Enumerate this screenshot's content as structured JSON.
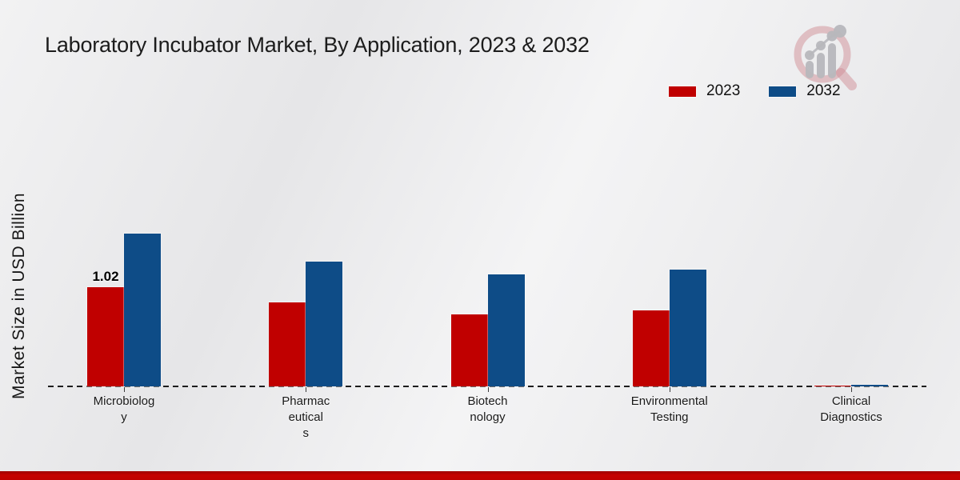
{
  "branding": {
    "logo_icon": "magnifier-growth-chart-logo"
  },
  "footer": {
    "strip_color": "#c00200"
  },
  "chart_data": {
    "type": "bar",
    "title": "Laboratory Incubator Market, By Application, 2023 & 2032",
    "xlabel": "",
    "ylabel": "Market Size in USD Billion",
    "unit": "USD Billion",
    "categories": [
      "Microbiology",
      "Pharmaceuticals",
      "Biotechnology",
      "Environmental Testing",
      "Clinical Diagnostics"
    ],
    "category_lines": [
      [
        "Microbiolog",
        "y"
      ],
      [
        "Pharmac",
        "eutical",
        "s"
      ],
      [
        "Biotech",
        "nology"
      ],
      [
        "Environmental",
        "Testing"
      ],
      [
        "Clinical",
        "Diagnostics"
      ]
    ],
    "series": [
      {
        "name": "2023",
        "color": "#c00000",
        "values": [
          1.02,
          0.86,
          0.74,
          0.78,
          0.01
        ]
      },
      {
        "name": "2032",
        "color": "#0e4c87",
        "values": [
          1.57,
          1.28,
          1.15,
          1.2,
          0.02
        ]
      }
    ],
    "data_labels": [
      {
        "category": "Microbiology",
        "series": "2023",
        "text": "1.02"
      }
    ],
    "ylim": [
      0,
      1.88
    ],
    "grid": false,
    "legend_position": "top-right",
    "zero_line_style": "dashed"
  }
}
